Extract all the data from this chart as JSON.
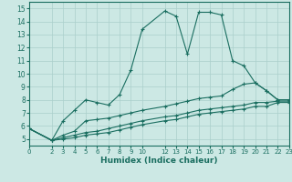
{
  "xlabel": "Humidex (Indice chaleur)",
  "bg_color": "#cce8e4",
  "grid_color": "#aacfcb",
  "line_color": "#1a6e60",
  "xlim": [
    0,
    23
  ],
  "ylim": [
    4.5,
    15.5
  ],
  "xticks": [
    0,
    2,
    3,
    4,
    5,
    6,
    7,
    8,
    9,
    10,
    12,
    13,
    14,
    15,
    16,
    17,
    18,
    19,
    20,
    21,
    22,
    23
  ],
  "yticks": [
    5,
    6,
    7,
    8,
    9,
    10,
    11,
    12,
    13,
    14,
    15
  ],
  "series": [
    {
      "x": [
        0,
        2,
        3,
        4,
        5,
        6,
        7,
        8,
        9,
        10,
        12,
        13,
        14,
        15,
        16,
        17,
        18,
        19,
        20,
        21,
        22,
        23
      ],
      "y": [
        5.8,
        4.9,
        6.4,
        7.2,
        8.0,
        7.8,
        7.6,
        8.4,
        10.3,
        13.4,
        14.8,
        14.4,
        11.5,
        14.7,
        14.7,
        14.5,
        11.0,
        10.6,
        9.3,
        8.7,
        8.0,
        8.0
      ]
    },
    {
      "x": [
        0,
        2,
        3,
        4,
        5,
        6,
        7,
        8,
        9,
        10,
        12,
        13,
        14,
        15,
        16,
        17,
        18,
        19,
        20,
        21,
        22,
        23
      ],
      "y": [
        5.8,
        4.9,
        5.3,
        5.6,
        6.4,
        6.5,
        6.6,
        6.8,
        7.0,
        7.2,
        7.5,
        7.7,
        7.9,
        8.1,
        8.2,
        8.3,
        8.8,
        9.2,
        9.3,
        8.7,
        8.0,
        8.0
      ]
    },
    {
      "x": [
        0,
        2,
        3,
        4,
        5,
        6,
        7,
        8,
        9,
        10,
        12,
        13,
        14,
        15,
        16,
        17,
        18,
        19,
        20,
        21,
        22,
        23
      ],
      "y": [
        5.8,
        4.9,
        5.1,
        5.3,
        5.5,
        5.6,
        5.8,
        6.0,
        6.2,
        6.4,
        6.7,
        6.8,
        7.0,
        7.2,
        7.3,
        7.4,
        7.5,
        7.6,
        7.8,
        7.8,
        7.9,
        7.9
      ]
    },
    {
      "x": [
        0,
        2,
        3,
        4,
        5,
        6,
        7,
        8,
        9,
        10,
        12,
        13,
        14,
        15,
        16,
        17,
        18,
        19,
        20,
        21,
        22,
        23
      ],
      "y": [
        5.8,
        4.9,
        5.0,
        5.1,
        5.3,
        5.4,
        5.5,
        5.7,
        5.9,
        6.1,
        6.4,
        6.5,
        6.7,
        6.9,
        7.0,
        7.1,
        7.2,
        7.3,
        7.5,
        7.5,
        7.8,
        7.8
      ]
    }
  ]
}
